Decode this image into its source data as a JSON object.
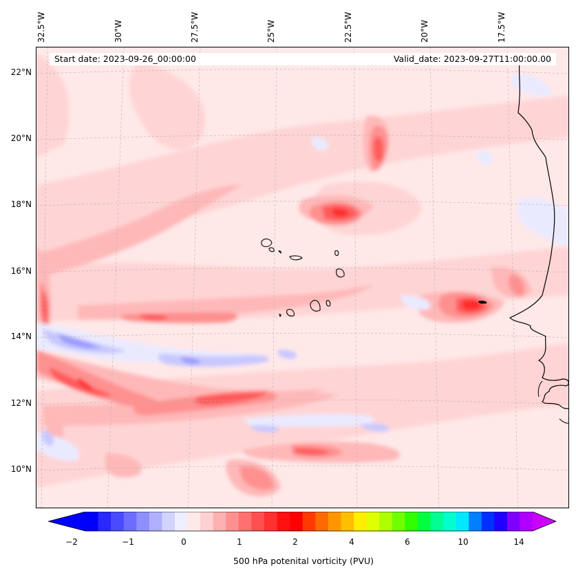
{
  "lon_labels": [
    "32.5°W",
    "30°W",
    "27.5°W",
    "25°W",
    "22.5°W",
    "20°W",
    "17.5°W"
  ],
  "lat_labels": [
    "22°N",
    "20°N",
    "18°N",
    "16°N",
    "14°N",
    "12°N",
    "10°N"
  ],
  "start_date_text": "Start date: 2023-09-26_00:00:00",
  "valid_date_text": "Valid_date: 2023-09-27T11:00:00.00",
  "colorbar": {
    "label": "500 hPa potenital vorticity (PVU)",
    "tick_labels": [
      "−2",
      "−1",
      "0",
      "1",
      "2",
      "4",
      "6",
      "10",
      "14"
    ],
    "colors": [
      "#0000ff",
      "#2828ff",
      "#4a4aff",
      "#6c6cff",
      "#8e8eff",
      "#b0b0ff",
      "#d2d2ff",
      "#eeeeff",
      "#ffe8e8",
      "#ffd0d0",
      "#ffb0b0",
      "#ff9090",
      "#ff7070",
      "#ff5050",
      "#ff3030",
      "#ff1010",
      "#ff0000",
      "#ff3a00",
      "#ff6a00",
      "#ff9600",
      "#ffbe00",
      "#ffee00",
      "#e0ff00",
      "#b0ff00",
      "#70ff00",
      "#30ff00",
      "#00ff40",
      "#00ff90",
      "#00ffcc",
      "#00e8ff",
      "#0080ff",
      "#0030ff",
      "#2000ff",
      "#8000ff",
      "#b000ff"
    ],
    "under_color": "#0000ff",
    "over_color": "#cc00ff"
  },
  "field_colors": {
    "background": "#ffe8e8",
    "light_pink": "#ffd4d4",
    "pink": "#ffb8b8",
    "red_light": "#ff9090",
    "red": "#ff5a5a",
    "red_strong": "#ff2a2a",
    "blue_light": "#eaeaff",
    "blue": "#c8c8ff",
    "blue_strong": "#9a9aff",
    "coast": "#000000"
  }
}
